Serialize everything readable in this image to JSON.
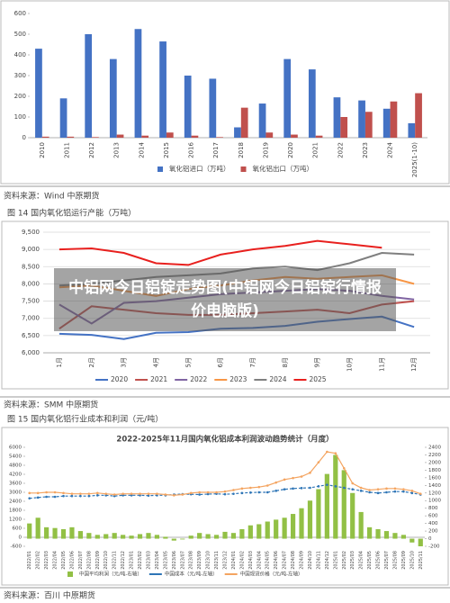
{
  "chart_data": [
    {
      "type": "bar",
      "categories": [
        "2010",
        "2011",
        "2012",
        "2013",
        "2014",
        "2015",
        "2016",
        "2017",
        "2018",
        "2019",
        "2020",
        "2021",
        "2022",
        "2023",
        "2024",
        "2025(1-10)"
      ],
      "series": [
        {
          "name": "氧化铝进口（万吨）",
          "color": "#4472c4",
          "values": [
            430,
            190,
            500,
            380,
            525,
            465,
            300,
            285,
            50,
            165,
            380,
            330,
            195,
            180,
            140,
            70
          ]
        },
        {
          "name": "氧化铝出口（万吨）",
          "color": "#c0504d",
          "values": [
            5,
            5,
            3,
            15,
            10,
            25,
            10,
            3,
            145,
            25,
            15,
            10,
            100,
            125,
            175,
            215
          ]
        }
      ],
      "ylim": [
        0,
        600
      ],
      "yticks": [
        0,
        100,
        200,
        300,
        400,
        500,
        600
      ],
      "grid": false
    },
    {
      "type": "line",
      "title": "图 14 国内氧化铝运行产能（万吨）",
      "categories": [
        "1月",
        "2月",
        "3月",
        "4月",
        "5月",
        "6月",
        "7月",
        "8月",
        "9月",
        "10月",
        "11月",
        "12月"
      ],
      "series": [
        {
          "name": "2020",
          "color": "#4472c4",
          "values": [
            6550,
            6520,
            6400,
            6580,
            6600,
            6700,
            6720,
            6780,
            6900,
            6980,
            7050,
            6750
          ]
        },
        {
          "name": "2021",
          "color": "#c0504d",
          "values": [
            6700,
            7350,
            7250,
            7150,
            7100,
            7100,
            7150,
            7200,
            7250,
            7150,
            7400,
            7500
          ]
        },
        {
          "name": "2022",
          "color": "#8064a2",
          "values": [
            7400,
            6850,
            7450,
            7500,
            7600,
            7700,
            7750,
            7800,
            7850,
            7800,
            7650,
            7550
          ]
        },
        {
          "name": "2023",
          "color": "#f79646",
          "values": [
            7900,
            7950,
            7800,
            7650,
            7850,
            7950,
            8100,
            8200,
            8150,
            8200,
            8250,
            8000
          ]
        },
        {
          "name": "2024",
          "color": "#7f7f7f",
          "values": [
            7950,
            8000,
            8100,
            8200,
            8250,
            8300,
            8450,
            8500,
            8400,
            8600,
            8900,
            8850
          ]
        },
        {
          "name": "2025",
          "color": "#e8201e",
          "values": [
            9000,
            9030,
            8900,
            8600,
            8550,
            8850,
            9000,
            9100,
            9250,
            9150,
            9050,
            null
          ]
        }
      ],
      "ylim": [
        6000,
        9500
      ],
      "yticks": [
        {
          "value": 6000,
          "label": "6,000"
        },
        {
          "value": 6500,
          "label": "6,500"
        },
        {
          "value": 7000,
          "label": "7,000"
        },
        {
          "value": 7500,
          "label": "7,500"
        },
        {
          "value": 8000,
          "label": "8,000"
        },
        {
          "value": 8500,
          "label": "8,500"
        },
        {
          "value": 9000,
          "label": "9,000"
        },
        {
          "value": 9500,
          "label": "9,500"
        }
      ],
      "grid": true
    },
    {
      "type": "combo",
      "title": "2022-2025年11月国内氧化铝成本利润波动趋势统计（月度）",
      "categories": [
        "2022/01",
        "2022/02",
        "2022/03",
        "2022/04",
        "2022/05",
        "2022/06",
        "2022/07",
        "2022/08",
        "2022/09",
        "2022/10",
        "2022/11",
        "2022/12",
        "2023/01",
        "2023/02",
        "2023/03",
        "2023/04",
        "2023/05",
        "2023/06",
        "2023/07",
        "2023/08",
        "2023/09",
        "2023/10",
        "2023/11",
        "2023/12",
        "2024/01",
        "2024/02",
        "2024/03",
        "2024/04",
        "2024/05",
        "2024/06",
        "2024/07",
        "2024/08",
        "2024/09",
        "2024/10",
        "2024/11",
        "2024/12",
        "2025/01",
        "2025/02",
        "2025/03",
        "2025/04",
        "2025/05",
        "2025/06",
        "2025/07",
        "2025/08",
        "2025/09",
        "2025/10",
        "2025/11"
      ],
      "series": [
        {
          "name": "中国平均利润（元/吨-右轴）",
          "type": "bar",
          "axis": "y2",
          "color": "#92c045",
          "values": [
            400,
            550,
            300,
            280,
            250,
            300,
            200,
            150,
            100,
            120,
            150,
            100,
            80,
            120,
            150,
            100,
            50,
            -50,
            -20,
            80,
            150,
            120,
            100,
            180,
            150,
            250,
            350,
            380,
            450,
            500,
            550,
            650,
            800,
            1000,
            1300,
            1700,
            2200,
            1800,
            1200,
            700,
            300,
            250,
            200,
            150,
            100,
            -100,
            -200
          ]
        },
        {
          "name": "中国成本（元/吨-左轴）",
          "type": "line",
          "color": "#2e75b6",
          "values": [
            2600,
            2650,
            2700,
            2700,
            2750,
            2750,
            2750,
            2750,
            2800,
            2800,
            2750,
            2800,
            2800,
            2800,
            2780,
            2800,
            2800,
            2850,
            2880,
            2870,
            2850,
            2880,
            2900,
            2870,
            2900,
            2950,
            2980,
            3000,
            3000,
            3100,
            3200,
            3250,
            3280,
            3300,
            3400,
            3500,
            3400,
            3300,
            3200,
            3100,
            3000,
            2950,
            3000,
            3050,
            3050,
            2950,
            2850
          ]
        },
        {
          "name": "中国现货价格（元/吨-左轴）",
          "type": "line",
          "color": "#f4a460",
          "values": [
            2950,
            2950,
            3000,
            3000,
            2950,
            2900,
            2900,
            2900,
            2950,
            2900,
            2850,
            2900,
            2900,
            2900,
            2900,
            2900,
            2850,
            2800,
            2850,
            2950,
            3000,
            3000,
            3000,
            3050,
            3150,
            3250,
            3300,
            3350,
            3450,
            3650,
            3850,
            3950,
            4050,
            4300,
            5000,
            5700,
            5600,
            4600,
            3600,
            3300,
            3150,
            3200,
            3250,
            3250,
            3200,
            3100,
            2900
          ]
        }
      ],
      "ylim": [
        -600,
        6000
      ],
      "yticks": [
        -600,
        0,
        600,
        1200,
        1800,
        2400,
        3000,
        3600,
        4200,
        4800,
        5400,
        6000
      ],
      "y2lim": [
        -200,
        2400
      ],
      "y2ticks": [
        -200,
        0,
        200,
        400,
        600,
        800,
        1000,
        1200,
        1400,
        1600,
        1800,
        2000,
        2200,
        2400
      ],
      "grid": false
    }
  ],
  "sources": [
    "资料来源：Wind 中原期货",
    "资料来源：SMM 中原期货",
    "资料来源：百川 中原期货"
  ],
  "caption": "图 15 国内氧化铝行业成本和利润（元/吨）",
  "overlay": "中铝网今日铝锭走势图(中铝网今日铝锭行情报价电脑版)"
}
